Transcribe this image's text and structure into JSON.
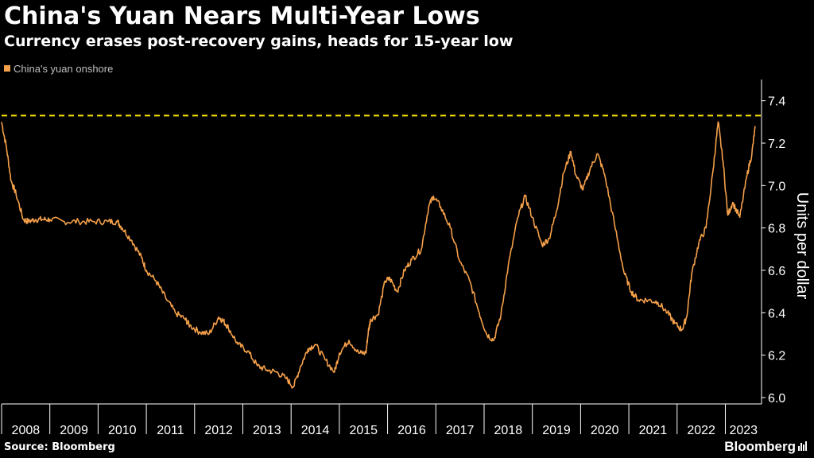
{
  "header": {
    "title": "China's Yuan Nears Multi-Year Lows",
    "subtitle": "Currency erases post-recovery gains, heads for 15-year low"
  },
  "footer": {
    "source": "Source: Bloomberg",
    "brand": "Bloomberg",
    "brand_icon": "bar-chart-icon"
  },
  "colors": {
    "background": "#000000",
    "series": "#f5a04a",
    "reference_line": "#ffe600",
    "axis": "#ffffff"
  },
  "chart_data": {
    "type": "line",
    "title": "China's Yuan Nears Multi-Year Lows",
    "subtitle": "Currency erases post-recovery gains, heads for 15-year low",
    "ylabel": "Units per dollar",
    "xlabel": "",
    "ylim": [
      5.97,
      7.5
    ],
    "xlim": [
      2008.0,
      2023.75
    ],
    "y_ticks": [
      6.0,
      6.2,
      6.4,
      6.6,
      6.8,
      7.0,
      7.2,
      7.4
    ],
    "y_tick_labels": [
      "6.0",
      "6.2",
      "6.4",
      "6.6",
      "6.8",
      "7.0",
      "7.2",
      "7.4"
    ],
    "x_tick_labels": [
      "2008",
      "2009",
      "2010",
      "2011",
      "2012",
      "2013",
      "2014",
      "2015",
      "2016",
      "2017",
      "2018",
      "2019",
      "2020",
      "2021",
      "2022",
      "2023"
    ],
    "y_axis_position": "right",
    "grid": false,
    "legend_position": "top-left",
    "reference_line": {
      "y": 7.33,
      "style": "dashed",
      "label": ""
    },
    "series": [
      {
        "name": "China's yuan onshore",
        "x": [
          2008.0,
          2008.1,
          2008.2,
          2008.3,
          2008.45,
          2008.55,
          2008.7,
          2008.85,
          2009.0,
          2009.3,
          2009.6,
          2009.9,
          2010.2,
          2010.4,
          2010.5,
          2010.7,
          2010.9,
          2011.0,
          2011.2,
          2011.4,
          2011.6,
          2011.8,
          2011.9,
          2012.1,
          2012.3,
          2012.5,
          2012.6,
          2012.7,
          2012.9,
          2013.1,
          2013.3,
          2013.5,
          2013.7,
          2013.9,
          2014.05,
          2014.2,
          2014.35,
          2014.5,
          2014.7,
          2014.9,
          2015.0,
          2015.2,
          2015.4,
          2015.55,
          2015.6,
          2015.65,
          2015.8,
          2015.95,
          2016.05,
          2016.2,
          2016.35,
          2016.5,
          2016.7,
          2016.85,
          2016.95,
          2017.1,
          2017.3,
          2017.5,
          2017.7,
          2017.9,
          2018.05,
          2018.2,
          2018.35,
          2018.5,
          2018.7,
          2018.85,
          2019.0,
          2019.2,
          2019.35,
          2019.5,
          2019.65,
          2019.8,
          2019.9,
          2020.05,
          2020.2,
          2020.35,
          2020.5,
          2020.7,
          2020.9,
          2021.05,
          2021.2,
          2021.4,
          2021.6,
          2021.8,
          2021.95,
          2022.1,
          2022.2,
          2022.3,
          2022.45,
          2022.6,
          2022.75,
          2022.85,
          2022.95,
          2023.05,
          2023.15,
          2023.3,
          2023.45,
          2023.55,
          2023.62
        ],
        "values": [
          7.3,
          7.18,
          7.02,
          6.96,
          6.84,
          6.83,
          6.84,
          6.84,
          6.84,
          6.83,
          6.83,
          6.83,
          6.83,
          6.83,
          6.8,
          6.74,
          6.66,
          6.6,
          6.55,
          6.47,
          6.4,
          6.37,
          6.34,
          6.31,
          6.3,
          6.38,
          6.36,
          6.33,
          6.25,
          6.22,
          6.15,
          6.13,
          6.12,
          6.09,
          6.05,
          6.15,
          6.23,
          6.25,
          6.18,
          6.12,
          6.21,
          6.27,
          6.21,
          6.21,
          6.31,
          6.37,
          6.39,
          6.55,
          6.56,
          6.5,
          6.6,
          6.65,
          6.7,
          6.9,
          6.95,
          6.9,
          6.8,
          6.64,
          6.55,
          6.4,
          6.3,
          6.27,
          6.39,
          6.62,
          6.85,
          6.95,
          6.85,
          6.72,
          6.75,
          6.88,
          7.06,
          7.16,
          7.05,
          6.98,
          7.08,
          7.15,
          7.05,
          6.82,
          6.59,
          6.5,
          6.46,
          6.46,
          6.45,
          6.4,
          6.35,
          6.32,
          6.38,
          6.58,
          6.73,
          6.8,
          7.08,
          7.3,
          7.12,
          6.86,
          6.92,
          6.85,
          7.05,
          7.15,
          7.28
        ]
      }
    ]
  }
}
